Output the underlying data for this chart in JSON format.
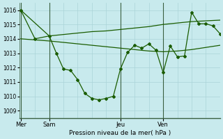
{
  "bg_color": "#c8eaed",
  "line_color": "#1a5c00",
  "grid_color": "#b8dde0",
  "xlabel": "Pression niveau de la mer( hPa )",
  "ylim": [
    1008.5,
    1016.5
  ],
  "yticks": [
    1009,
    1010,
    1011,
    1012,
    1013,
    1014,
    1015,
    1016
  ],
  "day_labels": [
    "Mer",
    "Sam",
    "Jeu",
    "Ven"
  ],
  "day_positions": [
    0,
    4,
    14,
    20
  ],
  "xlim": [
    -0.2,
    28
  ],
  "line_top_x": [
    0,
    4,
    6,
    8,
    10,
    12,
    14,
    16,
    18,
    20,
    22,
    24,
    26,
    28
  ],
  "line_top_y": [
    1016.0,
    1014.2,
    1014.3,
    1014.4,
    1014.5,
    1014.55,
    1014.65,
    1014.75,
    1014.85,
    1015.0,
    1015.1,
    1015.2,
    1015.25,
    1015.3
  ],
  "line_mid_x": [
    0,
    4,
    6,
    8,
    10,
    12,
    14,
    16,
    18,
    20,
    22,
    24,
    26,
    28
  ],
  "line_mid_y": [
    1014.0,
    1013.85,
    1013.75,
    1013.65,
    1013.55,
    1013.45,
    1013.35,
    1013.25,
    1013.15,
    1013.1,
    1013.15,
    1013.25,
    1013.4,
    1013.55
  ],
  "line_low_x": [
    0,
    2,
    4,
    5,
    6,
    7,
    8,
    9,
    10,
    11,
    12,
    13,
    14,
    15,
    16,
    17,
    18,
    19,
    20,
    21,
    22,
    23,
    24,
    25,
    26,
    27,
    28
  ],
  "line_low_y": [
    1016.0,
    1014.0,
    1014.2,
    1013.0,
    1011.9,
    1011.8,
    1011.15,
    1010.2,
    1009.85,
    1009.75,
    1009.85,
    1010.0,
    1011.9,
    1013.05,
    1013.55,
    1013.35,
    1013.65,
    1013.2,
    1011.65,
    1013.5,
    1012.75,
    1012.8,
    1015.85,
    1015.05,
    1015.05,
    1014.9,
    1014.35
  ]
}
